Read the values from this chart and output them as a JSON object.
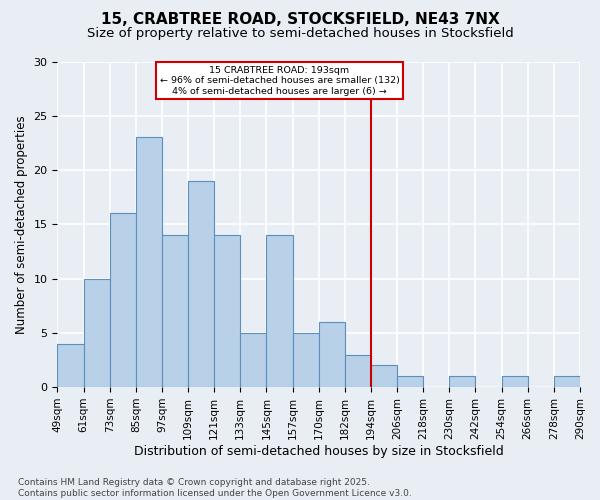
{
  "title1": "15, CRABTREE ROAD, STOCKSFIELD, NE43 7NX",
  "title2": "Size of property relative to semi-detached houses in Stocksfield",
  "xlabel": "Distribution of semi-detached houses by size in Stocksfield",
  "ylabel": "Number of semi-detached properties",
  "categories": [
    "49sqm",
    "61sqm",
    "73sqm",
    "85sqm",
    "97sqm",
    "109sqm",
    "121sqm",
    "133sqm",
    "145sqm",
    "157sqm",
    "170sqm",
    "182sqm",
    "194sqm",
    "206sqm",
    "218sqm",
    "230sqm",
    "242sqm",
    "254sqm",
    "266sqm",
    "278sqm",
    "290sqm"
  ],
  "values": [
    4,
    10,
    16,
    23,
    14,
    19,
    14,
    5,
    14,
    5,
    6,
    3,
    2,
    1,
    0,
    1,
    0,
    1,
    0,
    1
  ],
  "bar_color": "#b8d0e8",
  "bar_edge_color": "#5a8fc0",
  "vline_x": 12.0,
  "vline_color": "#cc0000",
  "annotation_title": "15 CRABTREE ROAD: 193sqm",
  "annotation_line1": "← 96% of semi-detached houses are smaller (132)",
  "annotation_line2": "4% of semi-detached houses are larger (6) →",
  "annotation_box_color": "#cc0000",
  "footer1": "Contains HM Land Registry data © Crown copyright and database right 2025.",
  "footer2": "Contains public sector information licensed under the Open Government Licence v3.0.",
  "ylim": [
    0,
    30
  ],
  "yticks": [
    0,
    5,
    10,
    15,
    20,
    25,
    30
  ],
  "background_color": "#e8eef4",
  "grid_color": "#ffffff",
  "title1_fontsize": 11,
  "title2_fontsize": 9.5,
  "xlabel_fontsize": 9,
  "ylabel_fontsize": 8.5,
  "tick_fontsize": 7.5,
  "footer_fontsize": 6.5
}
